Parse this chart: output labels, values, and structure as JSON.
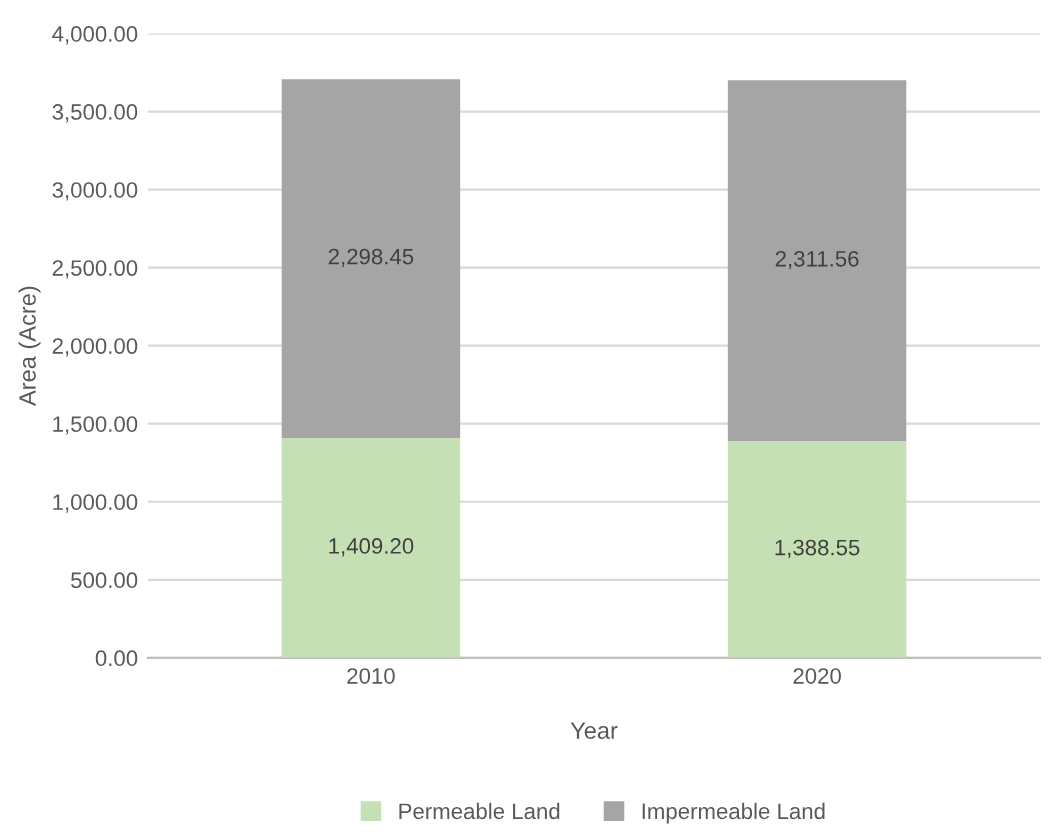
{
  "chart_data": {
    "type": "bar",
    "stacked": true,
    "xlabel": "Year",
    "ylabel": "Area (Acre)",
    "categories": [
      "2010",
      "2020"
    ],
    "series": [
      {
        "name": "Permeable Land",
        "color": "#c5e0b4",
        "values": [
          1409.2,
          1388.55
        ],
        "value_labels": [
          "1,409.20",
          "1,388.55"
        ]
      },
      {
        "name": "Impermeable Land",
        "color": "#a5a5a5",
        "values": [
          2298.45,
          2311.56
        ],
        "value_labels": [
          "2,298.45",
          "2,311.56"
        ]
      }
    ],
    "ylim": [
      0,
      4000
    ],
    "yticks": [
      {
        "value": 0,
        "label": "0.00"
      },
      {
        "value": 500,
        "label": "500.00"
      },
      {
        "value": 1000,
        "label": "1,000.00"
      },
      {
        "value": 1500,
        "label": "1,500.00"
      },
      {
        "value": 2000,
        "label": "2,000.00"
      },
      {
        "value": 2500,
        "label": "2,500.00"
      },
      {
        "value": 3000,
        "label": "3,000.00"
      },
      {
        "value": 3500,
        "label": "3,500.00"
      },
      {
        "value": 4000,
        "label": "4,000.00"
      }
    ],
    "grid": "y",
    "legend": "bottom"
  }
}
